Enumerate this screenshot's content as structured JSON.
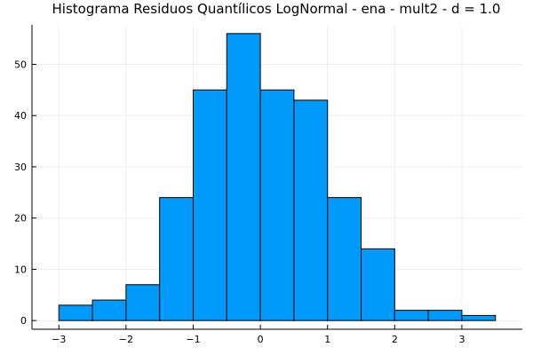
{
  "chart_data": {
    "type": "bar",
    "title": "Histograma Residuos Quantílicos LogNormal - ena - mult2 - d = 1.0",
    "xlabel": "",
    "ylabel": "",
    "bin_edges": [
      -3.0,
      -2.5,
      -2.0,
      -1.5,
      -1.0,
      -0.5,
      0.0,
      0.5,
      1.0,
      1.5,
      2.0,
      2.5,
      3.0,
      3.5
    ],
    "values": [
      3,
      4,
      7,
      24,
      45,
      56,
      45,
      43,
      24,
      14,
      2,
      2,
      1
    ],
    "xlim": [
      -3.4,
      3.9
    ],
    "ylim": [
      -1.7,
      57.7
    ],
    "x_ticks": [
      -3,
      -2,
      -1,
      0,
      1,
      2,
      3
    ],
    "x_tick_labels": [
      "−3",
      "−2",
      "−1",
      "0",
      "1",
      "2",
      "3"
    ],
    "y_ticks": [
      0,
      10,
      20,
      30,
      40,
      50
    ],
    "y_tick_labels": [
      "0",
      "10",
      "20",
      "30",
      "40",
      "50"
    ],
    "grid": true,
    "legend": "none",
    "bar_color": "#009AFA",
    "edge_color": "#000000"
  }
}
